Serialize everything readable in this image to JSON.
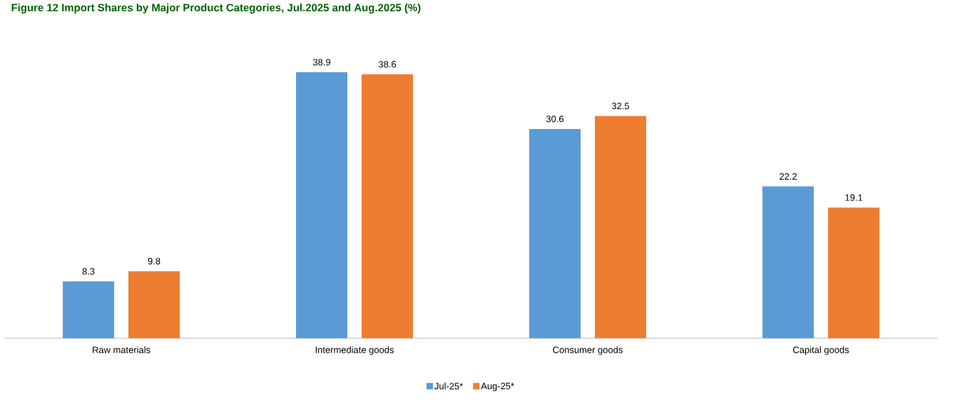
{
  "chart_data": {
    "type": "bar",
    "title": "Figure 12 Import Shares by Major Product Categories, Jul.2025 and Aug.2025 (%)",
    "categories": [
      "Raw materials",
      "Intermediate goods",
      "Consumer goods",
      "Capital goods"
    ],
    "series": [
      {
        "name": "Jul-25*",
        "color": "#5b9bd5",
        "values": [
          8.3,
          38.9,
          30.6,
          22.2
        ]
      },
      {
        "name": "Aug-25*",
        "color": "#ed7d31",
        "values": [
          9.8,
          38.6,
          32.5,
          19.1
        ]
      }
    ],
    "data_labels": true,
    "legend": "bottom"
  }
}
